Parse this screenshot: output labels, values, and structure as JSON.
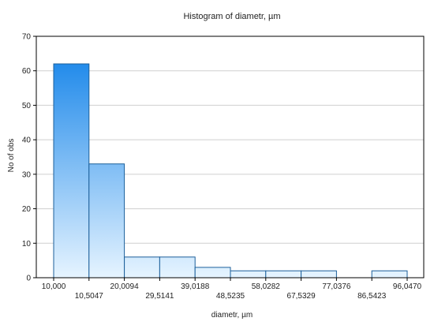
{
  "chart_data": {
    "type": "bar",
    "title": "Histogram of diametr, µm",
    "xlabel": "diametr, µm",
    "ylabel": "No of obs",
    "ylim": [
      0,
      70
    ],
    "yticks": [
      0,
      10,
      20,
      30,
      40,
      50,
      60,
      70
    ],
    "grid": true,
    "x_tick_labels": [
      "10,000",
      "10,5047",
      "20,0094",
      "29,5141",
      "39,0188",
      "48,5235",
      "58,0282",
      "67,5329",
      "77,0376",
      "86,5423",
      "96,0470"
    ],
    "values": [
      62,
      33,
      6,
      6,
      3,
      2,
      2,
      2,
      0,
      2
    ],
    "colors": {
      "bar_dark": "#0a7ee8",
      "bar_light": "#e6f4ff",
      "bar_stroke": "#1c5f9a",
      "grid": "#cfcfcf",
      "frame": "#000000"
    }
  }
}
